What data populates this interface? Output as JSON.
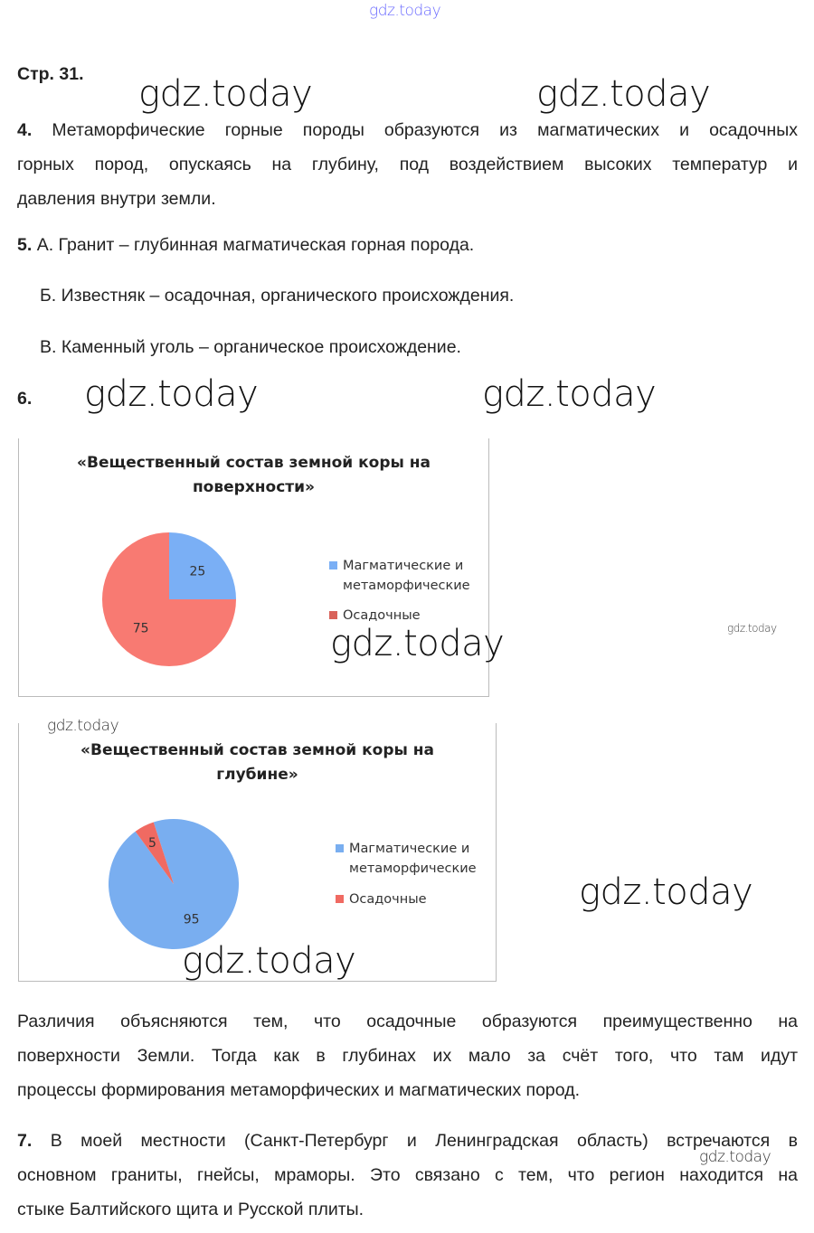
{
  "watermarks": [
    "gdz.today",
    "gdz.today",
    "gdz.today",
    "gdz.today",
    "gdz.today",
    "gdz.today",
    "gdz.today",
    "gdz.today",
    "gdz.today",
    "gdz.today",
    "gdz.today"
  ],
  "page_label": "Стр. 31.",
  "q4": {
    "num": "4.",
    "lines": [
      "Метаморфические горные породы образуются из магматических и осадочных",
      "горных пород, опускаясь на глубину, под воздействием высоких температур и",
      "давления внутри земли."
    ]
  },
  "q5": {
    "num": "5.",
    "items": [
      "А. Гранит – глубинная магматическая горная порода.",
      "Б. Известняк – осадочная, органического происхождения.",
      "В. Каменный уголь – органическое происхождение."
    ]
  },
  "q6": {
    "num": "6.",
    "lines": [
      "Различия объясняются тем, что осадочные образуются преимущественно на",
      "поверхности Земли. Тогда как в глубинах их мало за счёт того, что там идут",
      "процессы формирования метаморфических и магматических пород."
    ]
  },
  "q7": {
    "num": "7.",
    "lines": [
      "В моей местности (Санкт-Петербург и Ленинградская область) встречаются в",
      "основном граниты, гнейсы, мраморы. Это связано с тем, что регион находится на",
      "стыке Балтийского щита и Русской плиты."
    ]
  },
  "chart_data": [
    {
      "type": "pie",
      "title_lines": [
        "«Вещественный состав земной коры на",
        "поверхности»"
      ],
      "legend": "right",
      "categories": [
        "Магматические и метаморфические",
        "Осадочные"
      ],
      "legend_lines": [
        [
          "Магматические и",
          "метаморфические"
        ],
        [
          "Осадочные"
        ]
      ],
      "values": [
        25,
        75
      ],
      "labels": [
        "25",
        "75"
      ],
      "colors": [
        "#7aaff5",
        "#f87a72"
      ]
    },
    {
      "type": "pie",
      "title_lines": [
        "«Вещественный состав земной коры на",
        "глубине»"
      ],
      "legend": "right",
      "categories": [
        "Магматические и метаморфические",
        "Осадочные"
      ],
      "legend_lines": [
        [
          "Магматические и",
          "метаморфические"
        ],
        [
          "Осадочные"
        ]
      ],
      "values": [
        95,
        5
      ],
      "labels": [
        "95",
        "5"
      ],
      "colors": [
        "#79aef0",
        "#f06a62"
      ]
    }
  ]
}
